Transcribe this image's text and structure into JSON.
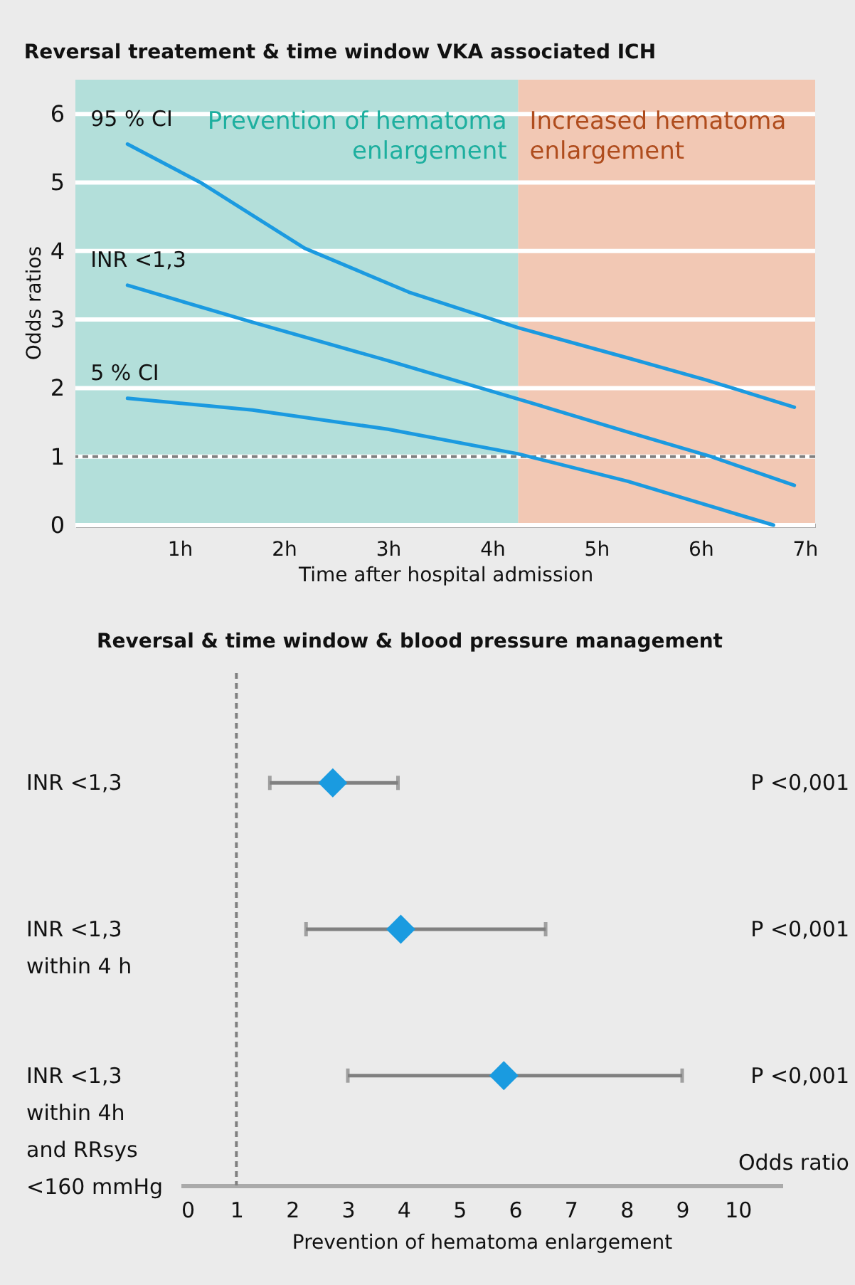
{
  "chart_data": [
    {
      "type": "line",
      "title": "Reversal treatement & time window VKA associated ICH",
      "xlabel": "Time after hospital admission",
      "ylabel": "Odds ratios",
      "xlim": [
        0,
        7.1
      ],
      "xticks": [
        {
          "value": 1,
          "label": "1h"
        },
        {
          "value": 2,
          "label": "2h"
        },
        {
          "value": 3,
          "label": "3h"
        },
        {
          "value": 4,
          "label": "4h"
        },
        {
          "value": 5,
          "label": "5h"
        },
        {
          "value": 6,
          "label": "6h"
        },
        {
          "value": 7,
          "label": "7h"
        }
      ],
      "ylim": [
        0,
        6.5
      ],
      "yticks": [
        0,
        1,
        2,
        3,
        4,
        5,
        6
      ],
      "grid": "y",
      "line_style": "solid",
      "series": [
        {
          "name": "95 % CI",
          "color": "#1b9ae0",
          "x": [
            0.5,
            1.2,
            2.2,
            3.2,
            4.25,
            5.3,
            6.05,
            6.9
          ],
          "values": [
            5.56,
            5.0,
            4.04,
            3.4,
            2.88,
            2.44,
            2.12,
            1.72
          ]
        },
        {
          "name": "INR <1,3",
          "color": "#1b9ae0",
          "x": [
            0.5,
            1.7,
            3.0,
            4.25,
            5.3,
            6.1,
            6.9
          ],
          "values": [
            3.5,
            2.96,
            2.4,
            1.84,
            1.36,
            1.0,
            0.58
          ]
        },
        {
          "name": "5 % CI",
          "color": "#1b9ae0",
          "x": [
            0.5,
            1.7,
            3.0,
            4.25,
            5.3,
            6.7
          ],
          "values": [
            1.85,
            1.68,
            1.4,
            1.04,
            0.64,
            0
          ]
        }
      ],
      "bands": [
        {
          "axis": "x",
          "from": 0,
          "to": 4.25,
          "label": "Prevention of hematoma\nenlargement",
          "color": "#b3dfda"
        },
        {
          "axis": "x",
          "from": 4.25,
          "to": 7.1,
          "label": "Increased hematoma\nenlargement",
          "color": "#f2c8b4"
        }
      ],
      "ref_lines": [
        {
          "axis": "y",
          "value": 1,
          "line_style": "dashed",
          "color": "#808080"
        }
      ]
    },
    {
      "type": "scatter",
      "title": "Reversal & time window & blood pressure management",
      "xlabel": "Prevention of hematoma enlargement",
      "orientation": "horizontal",
      "marker": "diamond",
      "color": "#1a9be0",
      "categories": [
        "INR <1,3",
        "INR <1,3\nwithin 4 h",
        "INR <1,3\nwithin 4h\nand RRsys\n<160 mmHg"
      ],
      "values": [
        2.73,
        3.95,
        5.8
      ],
      "errors": [
        [
          1.6,
          3.9
        ],
        [
          2.25,
          6.55
        ],
        [
          3.0,
          9.0
        ]
      ],
      "xlim": [
        0,
        10.8
      ],
      "xticks": [
        0,
        1,
        2,
        3,
        4,
        5,
        6,
        7,
        8,
        9,
        10
      ],
      "ref_lines": [
        {
          "axis": "x",
          "value": 1,
          "line_style": "dashed",
          "color": "#808080"
        }
      ],
      "annotations": [
        "P <0,001",
        "P <0,001",
        "P <0,001",
        "Odds ratio"
      ]
    }
  ]
}
